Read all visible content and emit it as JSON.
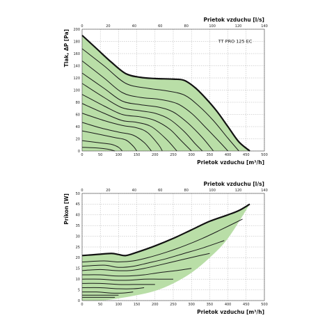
{
  "chart_data": [
    {
      "type": "line",
      "model_label": "TT PRO 125 EC",
      "xlabel": "Prietok vzduchu [m³/h]",
      "ylabel": "Tlak, ΔP [Pa]",
      "x2label": "Prietok vzduchu [l/s]",
      "xlim": [
        0,
        500
      ],
      "ylim": [
        0,
        200
      ],
      "x2lim": [
        0,
        140
      ],
      "xticks": [
        0,
        50,
        100,
        150,
        200,
        250,
        300,
        350,
        400,
        450,
        500
      ],
      "yticks": [
        0,
        20,
        40,
        60,
        80,
        100,
        120,
        140,
        160,
        180,
        200
      ],
      "x2ticks": [
        0,
        20,
        40,
        60,
        80,
        100,
        120,
        140
      ],
      "grid": true,
      "fill_color": "#b9dea7",
      "max_curve": {
        "x": [
          0,
          40,
          80,
          120,
          160,
          200,
          250,
          280,
          310,
          340,
          370,
          400,
          430,
          460
        ],
        "y": [
          190,
          168,
          146,
          127,
          121,
          119,
          118,
          116,
          104,
          86,
          65,
          40,
          15,
          0
        ]
      },
      "series": [
        {
          "x": [
            0,
            60,
            120,
            180,
            230,
            280,
            320,
            360,
            400,
            430
          ],
          "y": [
            168,
            140,
            111,
            103,
            99,
            92,
            74,
            50,
            21,
            0
          ]
        },
        {
          "x": [
            0,
            60,
            110,
            160,
            210,
            260,
            300,
            340,
            380,
            400
          ],
          "y": [
            148,
            120,
            96,
            88,
            85,
            78,
            62,
            38,
            13,
            0
          ]
        },
        {
          "x": [
            0,
            60,
            110,
            160,
            210,
            250,
            290,
            330,
            360
          ],
          "y": [
            128,
            103,
            82,
            76,
            72,
            64,
            46,
            22,
            0
          ]
        },
        {
          "x": [
            0,
            60,
            110,
            160,
            200,
            240,
            280,
            310,
            330
          ],
          "y": [
            111,
            88,
            71,
            66,
            62,
            52,
            32,
            12,
            0
          ]
        },
        {
          "x": [
            0,
            60,
            110,
            160,
            200,
            240,
            270,
            300
          ],
          "y": [
            93,
            74,
            60,
            56,
            50,
            36,
            18,
            0
          ]
        },
        {
          "x": [
            0,
            60,
            110,
            150,
            190,
            230,
            260
          ],
          "y": [
            78,
            62,
            50,
            47,
            40,
            20,
            0
          ]
        },
        {
          "x": [
            0,
            60,
            110,
            150,
            180,
            210,
            220
          ],
          "y": [
            62,
            50,
            42,
            38,
            30,
            10,
            0
          ]
        },
        {
          "x": [
            0,
            50,
            100,
            140,
            170,
            190
          ],
          "y": [
            47,
            38,
            31,
            26,
            14,
            0
          ]
        },
        {
          "x": [
            0,
            50,
            90,
            120,
            140,
            150
          ],
          "y": [
            33,
            27,
            22,
            18,
            8,
            0
          ]
        },
        {
          "x": [
            0,
            40,
            80,
            100,
            110
          ],
          "y": [
            17,
            14,
            11,
            6,
            0
          ]
        },
        {
          "x": [
            0,
            40,
            70,
            90
          ],
          "y": [
            6,
            5,
            3,
            0
          ]
        }
      ]
    },
    {
      "type": "line",
      "xlabel": "Prietok vzduchu [m³/h]",
      "ylabel": "Príkon [W]",
      "x2label": "Prietok vzduchu [l/s]",
      "xlim": [
        0,
        500
      ],
      "ylim": [
        0,
        50
      ],
      "x2lim": [
        0,
        140
      ],
      "xticks": [
        0,
        50,
        100,
        150,
        200,
        250,
        300,
        350,
        400,
        450,
        500
      ],
      "yticks": [
        0,
        5,
        10,
        15,
        20,
        25,
        30,
        35,
        40,
        45,
        50
      ],
      "x2ticks": [
        0,
        20,
        40,
        60,
        80,
        100,
        120,
        140
      ],
      "grid": true,
      "fill_color": "#b9dea7",
      "max_curve": {
        "x": [
          0,
          40,
          80,
          100,
          120,
          150,
          200,
          250,
          300,
          350,
          400,
          430,
          460
        ],
        "y": [
          21,
          21.5,
          22,
          21.5,
          21,
          22.5,
          25.5,
          29,
          33,
          37,
          40,
          42,
          45
        ]
      },
      "lower_boundary": {
        "x": [
          0,
          50,
          100,
          150,
          200,
          250,
          300,
          350,
          400,
          460
        ],
        "y": [
          0,
          0,
          1,
          2.5,
          4.5,
          8,
          13,
          20,
          29,
          45
        ]
      },
      "series": [
        {
          "x": [
            0,
            60,
            100,
            140,
            180,
            230,
            280,
            330,
            380,
            440
          ],
          "y": [
            18,
            18.5,
            18,
            18.5,
            20,
            22.5,
            25.5,
            29,
            33,
            38
          ]
        },
        {
          "x": [
            0,
            60,
            100,
            140,
            180,
            230,
            280,
            330,
            390
          ],
          "y": [
            16,
            16.5,
            15.5,
            16,
            17.5,
            19.5,
            22,
            24.5,
            28
          ]
        },
        {
          "x": [
            0,
            50,
            90,
            130,
            170,
            210,
            260,
            310,
            350
          ],
          "y": [
            14,
            14.5,
            14,
            14,
            15,
            16.5,
            18.5,
            20.5,
            22
          ]
        },
        {
          "x": [
            0,
            50,
            90,
            130,
            170,
            210,
            260,
            300
          ],
          "y": [
            12,
            12,
            11.5,
            11.5,
            12,
            13,
            14,
            15
          ]
        },
        {
          "x": [
            0,
            50,
            90,
            130,
            170,
            210,
            250
          ],
          "y": [
            10,
            10,
            9.5,
            9.5,
            10,
            10,
            10
          ]
        },
        {
          "x": [
            0,
            50,
            100,
            140,
            170,
            200
          ],
          "y": [
            8,
            8,
            7.5,
            7.5,
            7.5,
            7.5
          ]
        },
        {
          "x": [
            0,
            50,
            100,
            140,
            170
          ],
          "y": [
            6,
            6,
            5.5,
            5.5,
            6
          ]
        },
        {
          "x": [
            0,
            40,
            80,
            110,
            140
          ],
          "y": [
            4,
            4,
            3.5,
            3.5,
            4
          ]
        },
        {
          "x": [
            0,
            40,
            80,
            100
          ],
          "y": [
            2.5,
            2.5,
            2.5,
            2.5
          ]
        },
        {
          "x": [
            0,
            40,
            70,
            90
          ],
          "y": [
            1.5,
            1.5,
            1.5,
            1.5
          ]
        }
      ]
    }
  ]
}
